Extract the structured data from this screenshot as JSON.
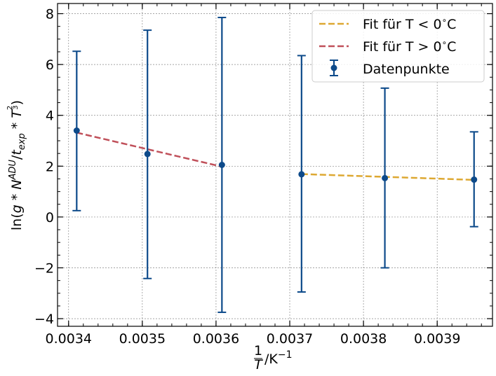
{
  "chart_data": {
    "type": "scatter",
    "title": "",
    "xlabel": {
      "frac_num": "1",
      "frac_den": "T",
      "rest": "/K",
      "sup": "−1"
    },
    "ylabel": {
      "p1": "ln(",
      "g": "g",
      "op1": " * ",
      "N": "N",
      "N_sup": "ADU",
      "slash": "/",
      "t": "t",
      "t_sub": "exp",
      "op2": " * ",
      "T": "T",
      "T_sup_num": "2",
      "T_sup_den": "3",
      "p2": ")"
    },
    "xlim": [
      0.003385,
      0.003975
    ],
    "ylim": [
      -4.3,
      8.4
    ],
    "xticks": [
      0.0034,
      0.0035,
      0.0036,
      0.0037,
      0.0038,
      0.0039
    ],
    "xtick_labels": [
      "0.0034",
      "0.0035",
      "0.0036",
      "0.0037",
      "0.0038",
      "0.0039"
    ],
    "yticks": [
      -4,
      -2,
      0,
      2,
      4,
      6,
      8
    ],
    "ytick_labels": [
      "−4",
      "−2",
      "0",
      "2",
      "4",
      "6",
      "8"
    ],
    "grid": true,
    "legend_position": "top-right",
    "series": [
      {
        "name": "Datenpunkte",
        "kind": "errorbar",
        "color": "#0d4a8a",
        "x": [
          0.003411,
          0.003507,
          0.003608,
          0.003716,
          0.003829,
          0.00395
        ],
        "y": [
          3.4,
          2.48,
          2.05,
          1.68,
          1.53,
          1.47
        ],
        "yerr_low": [
          0.25,
          -2.42,
          -3.75,
          -2.95,
          -2.0,
          -0.38
        ],
        "yerr_high": [
          6.52,
          7.35,
          7.85,
          6.35,
          5.07,
          3.35
        ]
      },
      {
        "name": "Fit für T < 0°C",
        "legend_main": "Fit für T < 0",
        "legend_deg": "∘",
        "legend_unit": "C",
        "kind": "dashed-line",
        "color": "#dda832",
        "x": [
          0.003716,
          0.00395
        ],
        "y": [
          1.69,
          1.46
        ]
      },
      {
        "name": "Fit für T > 0°C",
        "legend_main": "Fit für T > 0",
        "legend_deg": "∘",
        "legend_unit": "C",
        "kind": "dashed-line",
        "color": "#c0505a",
        "x": [
          0.003411,
          0.003608
        ],
        "y": [
          3.32,
          1.98
        ]
      }
    ]
  }
}
